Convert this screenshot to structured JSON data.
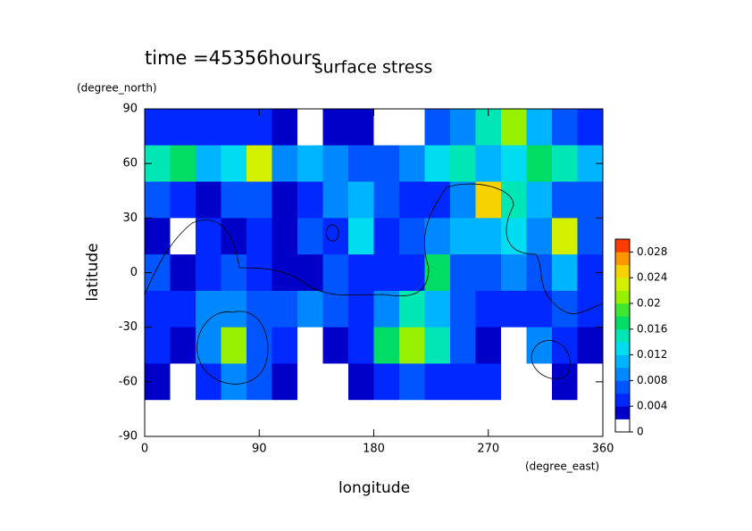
{
  "chart_data": {
    "type": "contour",
    "time_label": "time =45356hours",
    "title": "surface stress",
    "y_unit": "(degree_north)",
    "ylabel": "latitude",
    "x_unit": "(degree_east)",
    "xlabel": "longitude",
    "xlim": [
      0,
      360
    ],
    "xticks": [
      0,
      90,
      180,
      270,
      360
    ],
    "ylim": [
      -90,
      90
    ],
    "yticks": [
      -90,
      -60,
      -30,
      0,
      30,
      60,
      90
    ],
    "zlim": [
      0,
      0.03
    ],
    "zticks": [
      0,
      0.004,
      0.008,
      0.012,
      0.016,
      0.02,
      0.024,
      0.028
    ],
    "colors": [
      "#ffffff",
      "#0000c8",
      "#0028ff",
      "#0055ff",
      "#0088ff",
      "#00b4ff",
      "#00dcf0",
      "#00e6b4",
      "#00dc64",
      "#3ce632",
      "#96f000",
      "#d2f000",
      "#f5d200",
      "#ff9600",
      "#ff3c00"
    ],
    "z": [
      [
        0.004,
        0.004,
        0.004,
        0.004,
        0.004,
        0.003,
        0,
        0.002,
        0.003,
        0,
        0,
        0.006,
        0.008,
        0.014,
        0.02,
        0.01,
        0.006,
        0.004
      ],
      [
        0.014,
        0.016,
        0.01,
        0.012,
        0.022,
        0.008,
        0.01,
        0.008,
        0.006,
        0.006,
        0.008,
        0.012,
        0.014,
        0.01,
        0.012,
        0.016,
        0.014,
        0.01
      ],
      [
        0.006,
        0.004,
        0.003,
        0.006,
        0.006,
        0.002,
        0.004,
        0.008,
        0.01,
        0.006,
        0.004,
        0.004,
        0.008,
        0.024,
        0.014,
        0.01,
        0.006,
        0.006
      ],
      [
        0.003,
        0,
        0.004,
        0.002,
        0.004,
        0.002,
        0.006,
        0.004,
        0.012,
        0.004,
        0.006,
        0.008,
        0.01,
        0.01,
        0.012,
        0.008,
        0.022,
        0.006
      ],
      [
        0.006,
        0.002,
        0.004,
        0.006,
        0.004,
        0.002,
        0.002,
        0.006,
        0.004,
        0.004,
        0.004,
        0.016,
        0.006,
        0.006,
        0.008,
        0.006,
        0.01,
        0.004
      ],
      [
        0.004,
        0.004,
        0.008,
        0.008,
        0.006,
        0.006,
        0.008,
        0.006,
        0.004,
        0.008,
        0.014,
        0.01,
        0.006,
        0.004,
        0.004,
        0.004,
        0.006,
        0.004
      ],
      [
        0.004,
        0.002,
        0.008,
        0.02,
        0.006,
        0.004,
        0,
        0.002,
        0.004,
        0.016,
        0.02,
        0.014,
        0.006,
        0.002,
        0,
        0.008,
        0.004,
        0.002
      ],
      [
        0.003,
        0,
        0.004,
        0.008,
        0.006,
        0.002,
        0,
        0,
        0.002,
        0.004,
        0.006,
        0.004,
        0.004,
        0.004,
        0,
        0,
        0.002,
        0
      ],
      [
        0,
        0,
        0,
        0,
        0,
        0,
        0,
        0,
        0,
        0,
        0,
        0,
        0,
        0,
        0,
        0,
        0,
        0
      ]
    ]
  }
}
